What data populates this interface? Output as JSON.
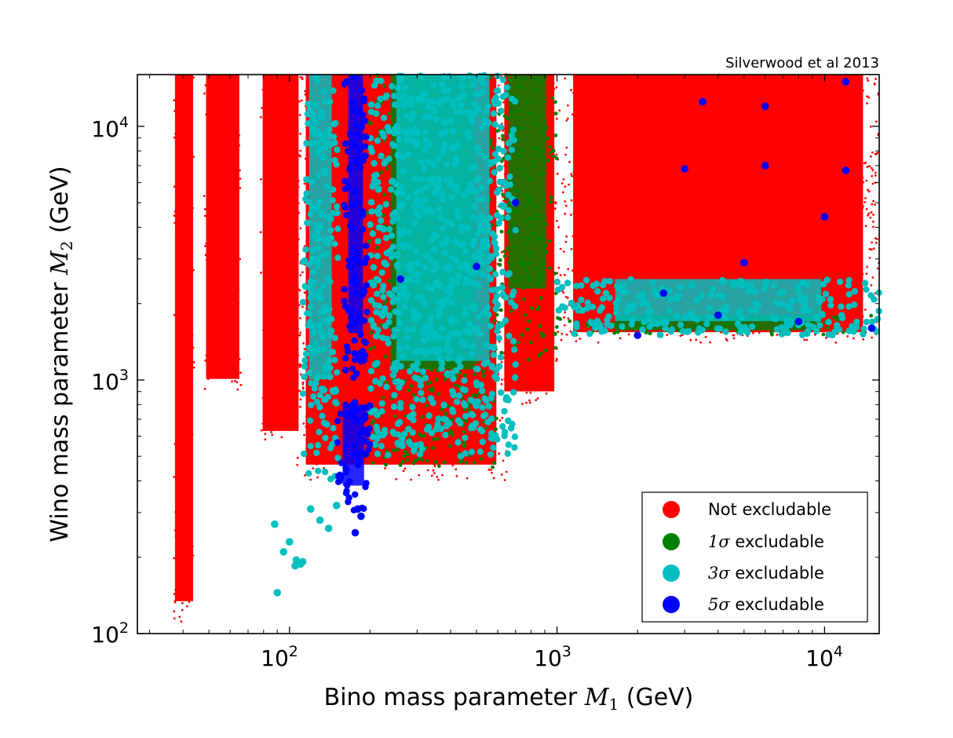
{
  "chart_data": {
    "type": "scatter",
    "credit": "Silverwood et al 2013",
    "x_scale": "log",
    "y_scale": "log",
    "xlim": [
      27,
      16000
    ],
    "ylim": [
      100,
      16000
    ],
    "x_ticks": [
      {
        "base": "10",
        "exp": "2",
        "value": 100
      },
      {
        "base": "10",
        "exp": "3",
        "value": 1000
      },
      {
        "base": "10",
        "exp": "4",
        "value": 10000
      }
    ],
    "y_ticks": [
      {
        "base": "10",
        "exp": "2",
        "value": 100
      },
      {
        "base": "10",
        "exp": "3",
        "value": 1000
      },
      {
        "base": "10",
        "exp": "4",
        "value": 10000
      }
    ],
    "xlabel": {
      "prefix": "Bino mass parameter ",
      "symbol": "M",
      "sub": "1",
      "suffix": " (GeV)"
    },
    "ylabel": {
      "prefix": "Wino mass parameter ",
      "symbol": "M",
      "sub": "2",
      "suffix": " (GeV)"
    },
    "legend": {
      "position": "lower-right",
      "entries": [
        {
          "symbol": "",
          "text": "Not excludable",
          "color": "#ff0000"
        },
        {
          "symbol": "1σ",
          "text": " excludable",
          "color": "#007f00"
        },
        {
          "symbol": "3σ",
          "text": " excludable",
          "color": "#00bfbf"
        },
        {
          "symbol": "5σ",
          "text": " excludable",
          "color": "#0000ff"
        }
      ]
    },
    "series": [
      {
        "name": "Not excludable",
        "color": "#ff0000",
        "marker": "small",
        "regions": [
          {
            "x": [
              1000,
              16000
            ],
            "y": [
              1400,
              16000
            ]
          },
          {
            "x": [
              37,
              44
            ],
            "y": [
              110,
              16000
            ]
          },
          {
            "x": [
              48,
              66
            ],
            "y": [
              900,
              16000
            ]
          },
          {
            "x": [
              78,
              110
            ],
            "y": [
              550,
              16000
            ]
          },
          {
            "x": [
              620,
              1000
            ],
            "y": [
              800,
              16000
            ]
          },
          {
            "x": [
              105,
              650
            ],
            "y": [
              400,
              16000
            ]
          }
        ]
      },
      {
        "name": "1σ excludable",
        "color": "#007f00",
        "marker": "medium",
        "regions": [
          {
            "x": [
              195,
              600
            ],
            "y": [
              450,
              16000
            ]
          },
          {
            "x": [
              600,
              1000
            ],
            "y": [
              1200,
              16000
            ]
          },
          {
            "x": [
              1000,
              16000
            ],
            "y": [
              1500,
              1800
            ]
          }
        ]
      },
      {
        "name": "3σ excludable",
        "color": "#00bfbf",
        "marker": "large",
        "regions": [
          {
            "x": [
              112,
              152
            ],
            "y": [
              400,
              16000
            ]
          },
          {
            "x": [
              200,
              700
            ],
            "y": [
              500,
              16000
            ]
          },
          {
            "x": [
              1000,
              16000
            ],
            "y": [
              1500,
              2500
            ]
          }
        ],
        "points": [
          [
            105,
            185
          ],
          [
            108,
            190
          ],
          [
            110,
            188
          ],
          [
            106,
            195
          ],
          [
            112,
            192
          ],
          [
            90,
            145
          ],
          [
            95,
            210
          ],
          [
            88,
            270
          ],
          [
            100,
            230
          ],
          [
            120,
            310
          ],
          [
            130,
            280
          ],
          [
            140,
            260
          ],
          [
            150,
            320
          ]
        ]
      },
      {
        "name": "5σ excludable",
        "color": "#0000ff",
        "marker": "large",
        "regions": [
          {
            "x": [
              160,
              195
            ],
            "y": [
              700,
              16000
            ]
          },
          {
            "x": [
              150,
              200
            ],
            "y": [
              300,
              800
            ]
          }
        ],
        "points": [
          [
            176,
            250
          ],
          [
            180,
            310
          ],
          [
            185,
            290
          ],
          [
            260,
            2500
          ],
          [
            500,
            2800
          ],
          [
            700,
            5000
          ],
          [
            3500,
            12500
          ],
          [
            6000,
            12000
          ],
          [
            12000,
            15000
          ],
          [
            6000,
            7000
          ],
          [
            3000,
            6800
          ],
          [
            10000,
            4400
          ],
          [
            5000,
            2900
          ],
          [
            2500,
            2200
          ],
          [
            4000,
            1800
          ],
          [
            8000,
            1700
          ],
          [
            15000,
            1600
          ],
          [
            2000,
            1500
          ],
          [
            12000,
            6700
          ]
        ]
      }
    ]
  }
}
